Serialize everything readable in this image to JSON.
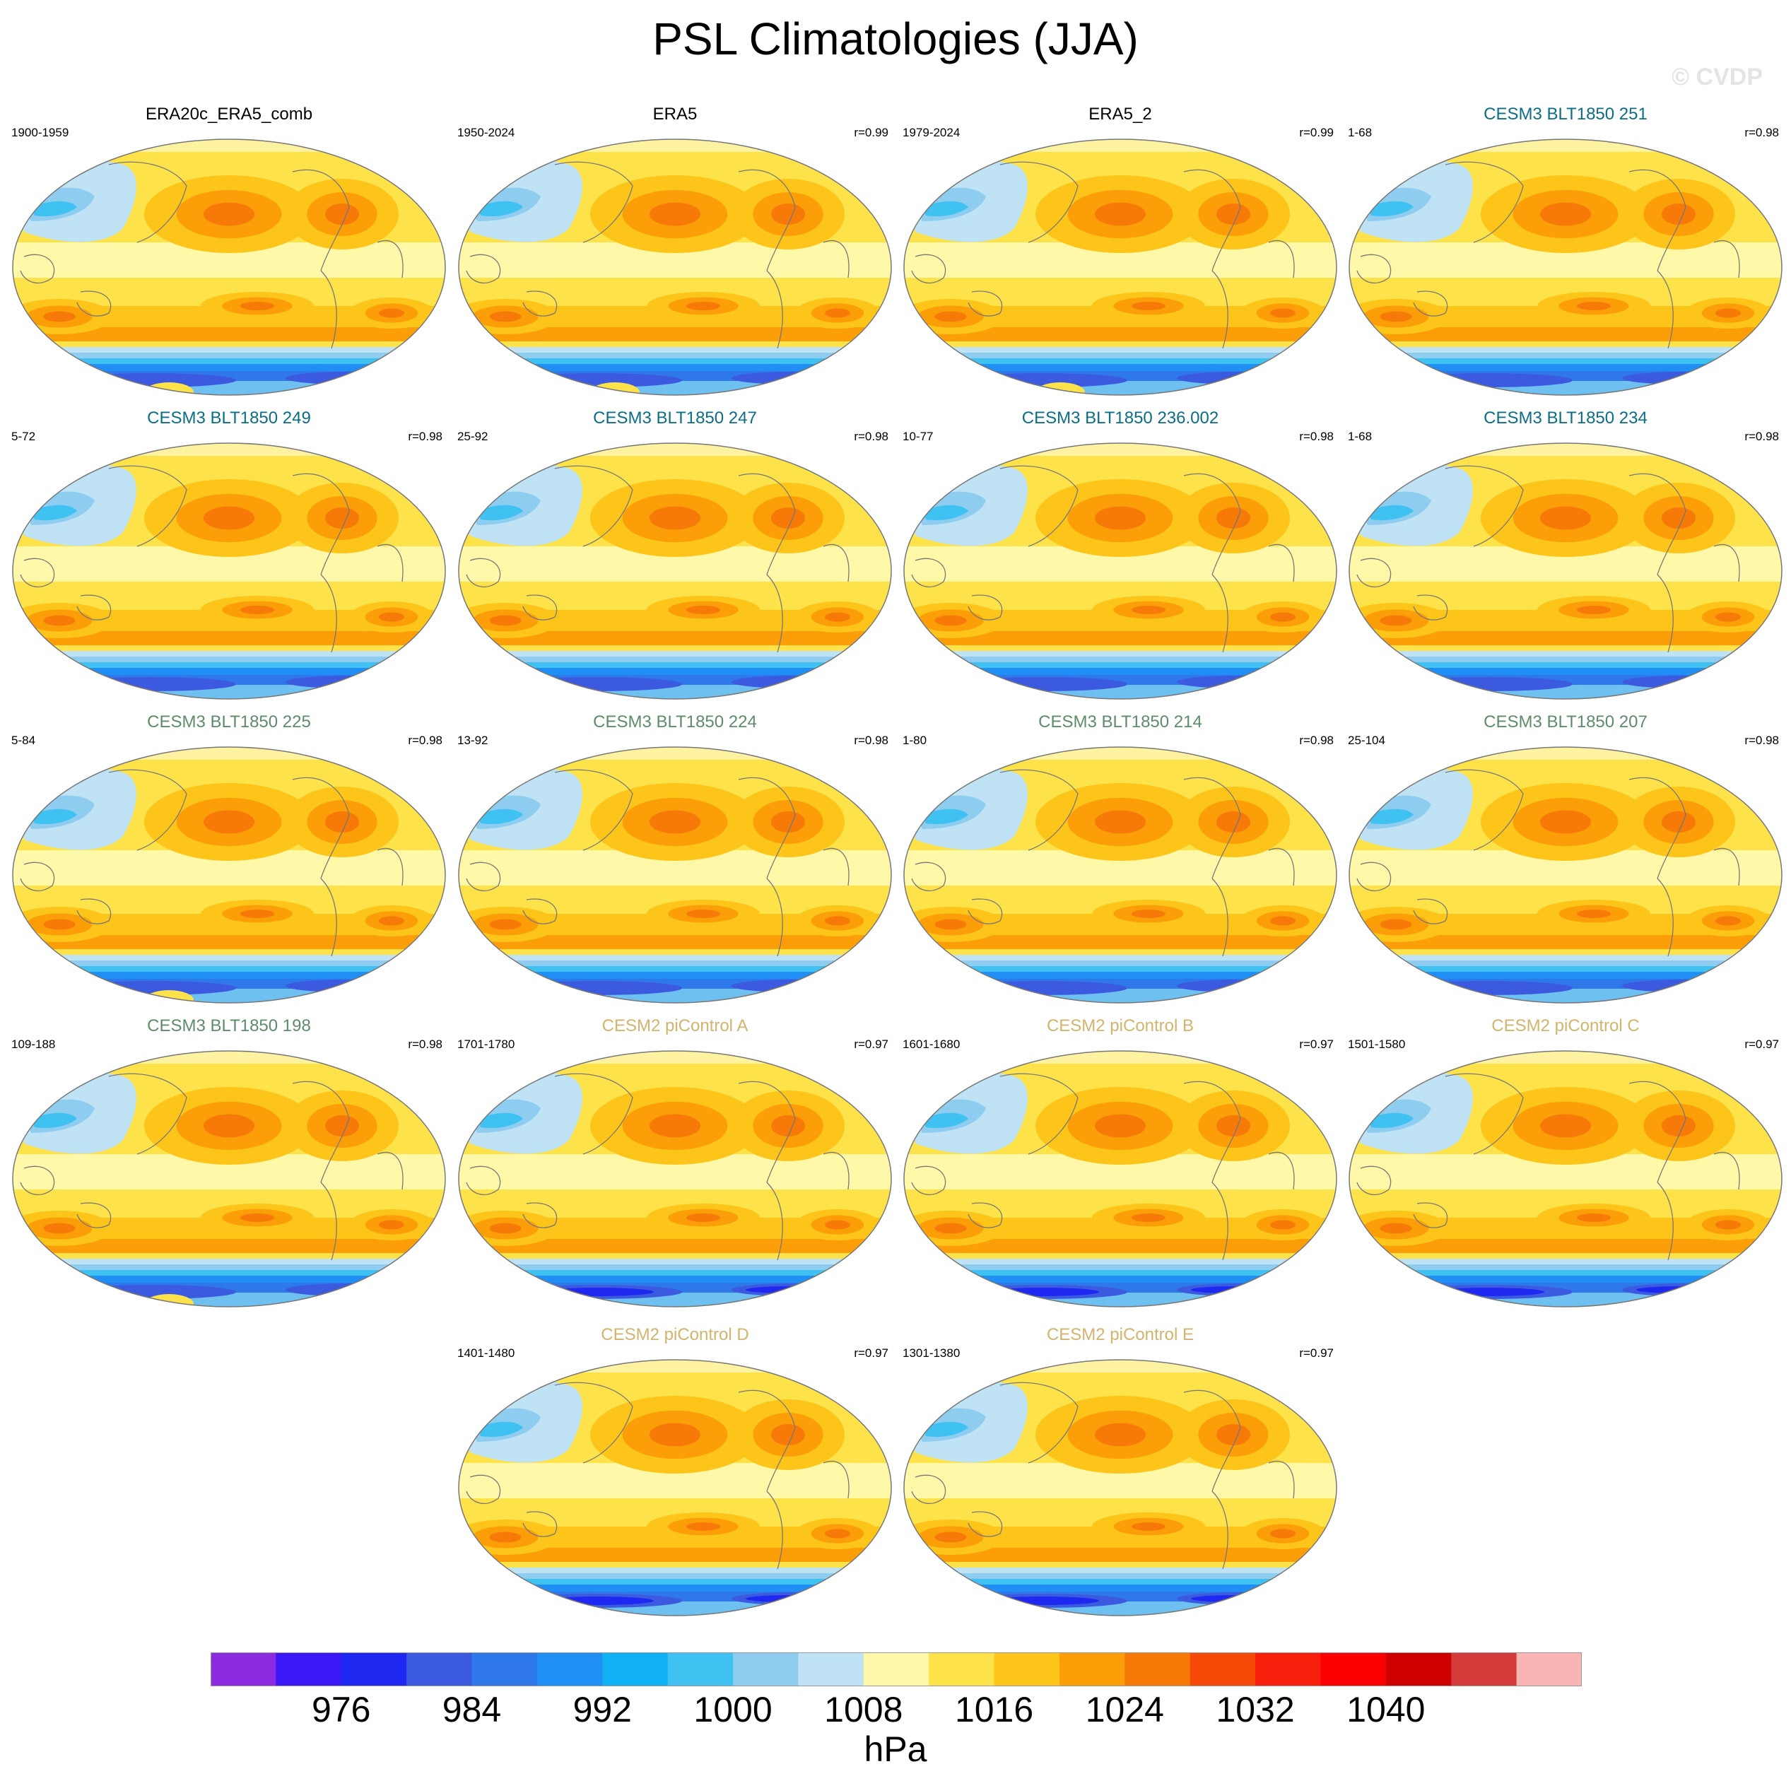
{
  "title": "PSL Climatologies (JJA)",
  "watermark": "© CVDP",
  "colors": {
    "obs_title": "#000000",
    "blt_a": "#0b6d86",
    "blt_b": "#5e8c6a",
    "picontrol": "#d2b46c"
  },
  "icons": [
    "world-map-icon"
  ],
  "panels": [
    {
      "title": "ERA20c_ERA5_comb",
      "years": "1900-1959",
      "r": "",
      "group": "obs",
      "lowlight": true
    },
    {
      "title": "ERA5",
      "years": "1950-2024",
      "r": "r=0.99",
      "group": "obs",
      "lowlight": true
    },
    {
      "title": "ERA5_2",
      "years": "1979-2024",
      "r": "r=0.99",
      "group": "obs",
      "lowlight": true
    },
    {
      "title": "CESM3 BLT1850 251",
      "years": "1-68",
      "r": "r=0.98",
      "group": "blt_a",
      "lowlight": false
    },
    {
      "title": "CESM3 BLT1850 249",
      "years": "5-72",
      "r": "r=0.98",
      "group": "blt_a",
      "lowlight": false
    },
    {
      "title": "CESM3 BLT1850 247",
      "years": "25-92",
      "r": "r=0.98",
      "group": "blt_a",
      "lowlight": false
    },
    {
      "title": "CESM3 BLT1850 236.002",
      "years": "10-77",
      "r": "r=0.98",
      "group": "blt_a",
      "lowlight": false
    },
    {
      "title": "CESM3 BLT1850 234",
      "years": "1-68",
      "r": "r=0.98",
      "group": "blt_a",
      "lowlight": false
    },
    {
      "title": "CESM3 BLT1850 225",
      "years": "5-84",
      "r": "r=0.98",
      "group": "blt_b",
      "lowlight": true
    },
    {
      "title": "CESM3 BLT1850 224",
      "years": "13-92",
      "r": "r=0.98",
      "group": "blt_b",
      "lowlight": false
    },
    {
      "title": "CESM3 BLT1850 214",
      "years": "1-80",
      "r": "r=0.98",
      "group": "blt_b",
      "lowlight": false
    },
    {
      "title": "CESM3 BLT1850 207",
      "years": "25-104",
      "r": "r=0.98",
      "group": "blt_b",
      "lowlight": false
    },
    {
      "title": "CESM3 BLT1850 198",
      "years": "109-188",
      "r": "r=0.98",
      "group": "blt_b",
      "lowlight": true
    },
    {
      "title": "CESM2 piControl A",
      "years": "1701-1780",
      "r": "r=0.97",
      "group": "picontrol",
      "lowlight": false
    },
    {
      "title": "CESM2 piControl B",
      "years": "1601-1680",
      "r": "r=0.97",
      "group": "picontrol",
      "lowlight": false
    },
    {
      "title": "CESM2 piControl C",
      "years": "1501-1580",
      "r": "r=0.97",
      "group": "picontrol",
      "lowlight": false
    },
    {
      "title": "CESM2 piControl D",
      "years": "1401-1480",
      "r": "r=0.97",
      "group": "picontrol",
      "lowlight": false
    },
    {
      "title": "CESM2 piControl E",
      "years": "1301-1380",
      "r": "r=0.97",
      "group": "picontrol",
      "lowlight": false
    }
  ],
  "chart_data": {
    "type": "heatmap",
    "title": "PSL Climatologies (JJA)",
    "units": "hPa",
    "colorbar": {
      "colors": [
        "#8a2be2",
        "#3b17f5",
        "#1e28f0",
        "#3c5ae0",
        "#2e78ea",
        "#1f8ff5",
        "#10b0f5",
        "#3fc2f2",
        "#8ecdf0",
        "#bfe2f4",
        "#fff8a8",
        "#fde24a",
        "#fdc41a",
        "#fb9e08",
        "#f77a08",
        "#f74a08",
        "#f71f0b",
        "#fb0000",
        "#cf0000",
        "#d53a3a",
        "#f9b4b4"
      ],
      "levels": [
        972,
        976,
        980,
        984,
        988,
        992,
        996,
        1000,
        1004,
        1008,
        1012,
        1016,
        1020,
        1024,
        1028,
        1032,
        1036,
        1040,
        1044,
        1048
      ],
      "tick_labels": [
        "976",
        "984",
        "992",
        "1000",
        "1008",
        "1016",
        "1024",
        "1032",
        "1040"
      ]
    }
  }
}
